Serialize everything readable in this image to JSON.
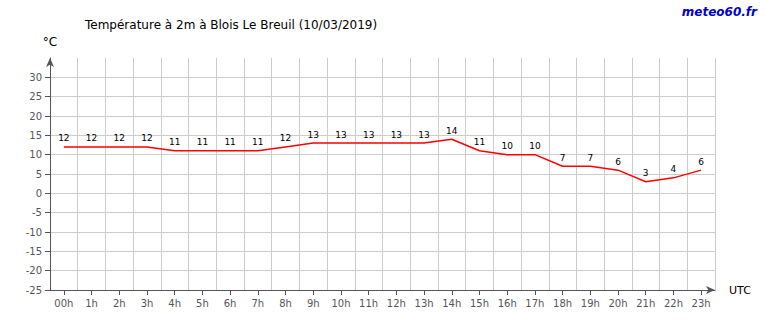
{
  "chart_data": {
    "type": "line",
    "title": "Température à 2m à Blois Le Breuil (10/03/2019)",
    "xlabel": "UTC",
    "ylabel": "°C",
    "annotations": [
      {
        "text": "meteo60.fr",
        "color": "#0000cc"
      }
    ],
    "categories": [
      "00h",
      "1h",
      "2h",
      "3h",
      "4h",
      "5h",
      "6h",
      "7h",
      "8h",
      "9h",
      "10h",
      "11h",
      "12h",
      "13h",
      "14h",
      "15h",
      "16h",
      "17h",
      "18h",
      "19h",
      "20h",
      "21h",
      "22h",
      "23h"
    ],
    "values": [
      12,
      12,
      12,
      12,
      11,
      11,
      11,
      11,
      12,
      13,
      13,
      13,
      13,
      13,
      14,
      11,
      10,
      10,
      7,
      7,
      6,
      3,
      4,
      6
    ],
    "color": "#ff0000",
    "ylim": [
      -25,
      35
    ],
    "yticks": [
      -25,
      -20,
      -15,
      -10,
      -5,
      0,
      5,
      10,
      15,
      20,
      25,
      30
    ],
    "grid": true,
    "data_labels": true
  }
}
